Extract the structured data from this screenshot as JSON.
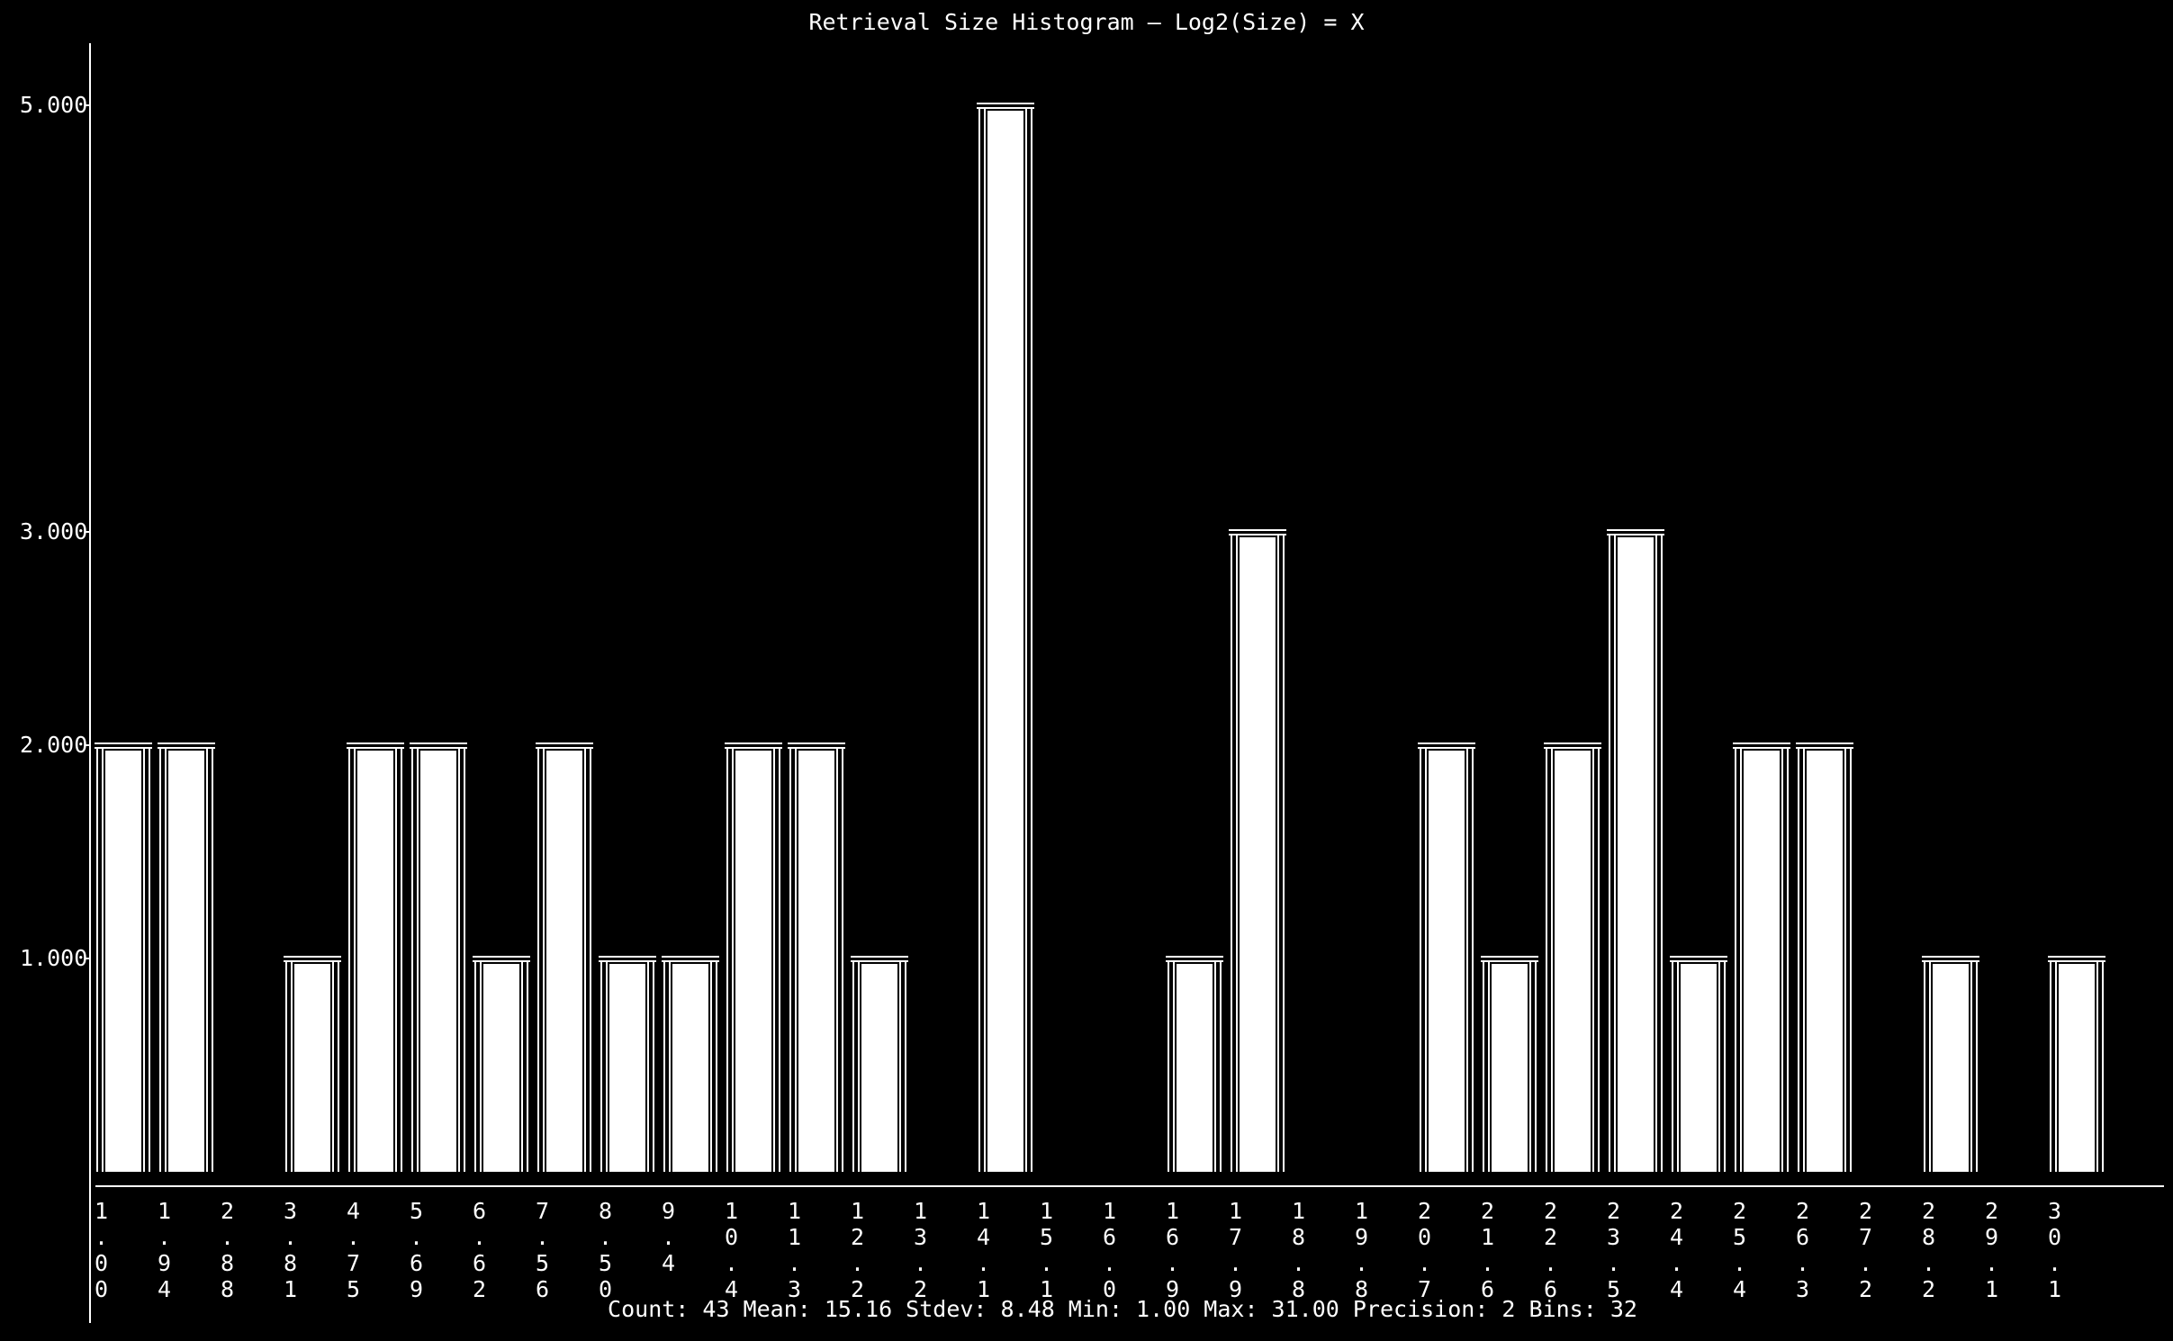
{
  "chart_data": {
    "type": "bar",
    "title": "Retrieval Size Histogram – Log2(Size) = X",
    "xlabel": "",
    "ylabel": "",
    "yticks": [
      {
        "value": 1,
        "label": "1.000"
      },
      {
        "value": 2,
        "label": "2.000"
      },
      {
        "value": 3,
        "label": "3.000"
      },
      {
        "value": 5,
        "label": "5.000"
      }
    ],
    "ylim": [
      0,
      5
    ],
    "categories": [
      "1.00",
      "1.94",
      "2.88",
      "3.81",
      "4.75",
      "5.69",
      "6.62",
      "7.56",
      "8.50",
      "9.4",
      "10.4",
      "11.3",
      "12.2",
      "13.2",
      "14.1",
      "15.1",
      "16.0",
      "16.9",
      "17.9",
      "18.8",
      "19.8",
      "20.7",
      "21.6",
      "22.6",
      "23.5",
      "24.4",
      "25.4",
      "26.3",
      "27.2",
      "28.2",
      "29.1",
      "30.1"
    ],
    "values": [
      2,
      2,
      0,
      1,
      2,
      2,
      1,
      2,
      1,
      1,
      2,
      2,
      1,
      0,
      5,
      0,
      0,
      1,
      3,
      0,
      0,
      2,
      1,
      2,
      3,
      1,
      2,
      2,
      0,
      1,
      0,
      1
    ],
    "bar_color": "#ffffff",
    "background": "#000000",
    "grid": false
  },
  "stats": {
    "text": "Count: 43 Mean: 15.16 Stdev: 8.48 Min: 1.00 Max: 31.00 Precision: 2 Bins: 32"
  }
}
